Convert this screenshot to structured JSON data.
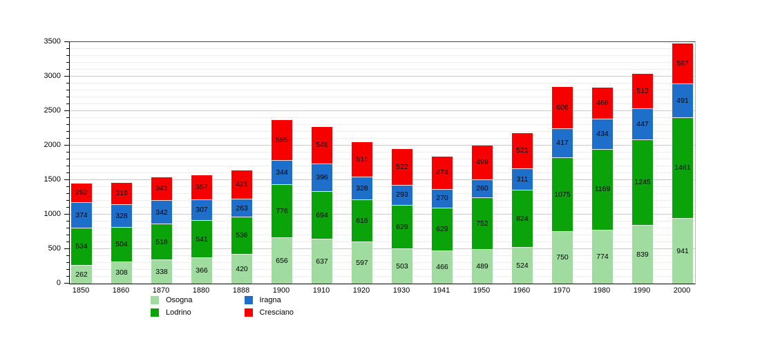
{
  "chart_data": {
    "type": "bar",
    "stacked": true,
    "title": "",
    "xlabel": "",
    "ylabel": "",
    "categories": [
      "1850",
      "1860",
      "1870",
      "1880",
      "1888",
      "1900",
      "1910",
      "1920",
      "1930",
      "1941",
      "1950",
      "1960",
      "1970",
      "1980",
      "1990",
      "2000"
    ],
    "series": [
      {
        "name": "Osogna",
        "color": "#a0dba0",
        "values": [
          262,
          308,
          338,
          366,
          420,
          656,
          637,
          597,
          503,
          466,
          489,
          524,
          750,
          774,
          839,
          941
        ]
      },
      {
        "name": "Lodrino",
        "color": "#0aa30a",
        "values": [
          534,
          504,
          518,
          541,
          536,
          776,
          694,
          616,
          629,
          629,
          752,
          824,
          1075,
          1169,
          1245,
          1461
        ]
      },
      {
        "name": "Iragna",
        "color": "#1e6fc9",
        "values": [
          374,
          328,
          342,
          307,
          263,
          344,
          396,
          328,
          293,
          270,
          260,
          311,
          417,
          434,
          447,
          491
        ]
      },
      {
        "name": "Cresciano",
        "color": "#f60000",
        "values": [
          282,
          319,
          341,
          357,
          421,
          595,
          548,
          511,
          522,
          474,
          499,
          521,
          606,
          468,
          513,
          587
        ]
      }
    ],
    "ylim": [
      0,
      3500
    ],
    "y_ticks": [
      0,
      500,
      1000,
      1500,
      2000,
      2500,
      3000,
      3500
    ],
    "y_minor_step": 100,
    "grid": true,
    "bar_value_labels": true,
    "legend_position": "bottom",
    "legend_columns": [
      [
        "Osogna",
        "Lodrino"
      ],
      [
        "Iragna",
        "Cresciano"
      ]
    ]
  }
}
